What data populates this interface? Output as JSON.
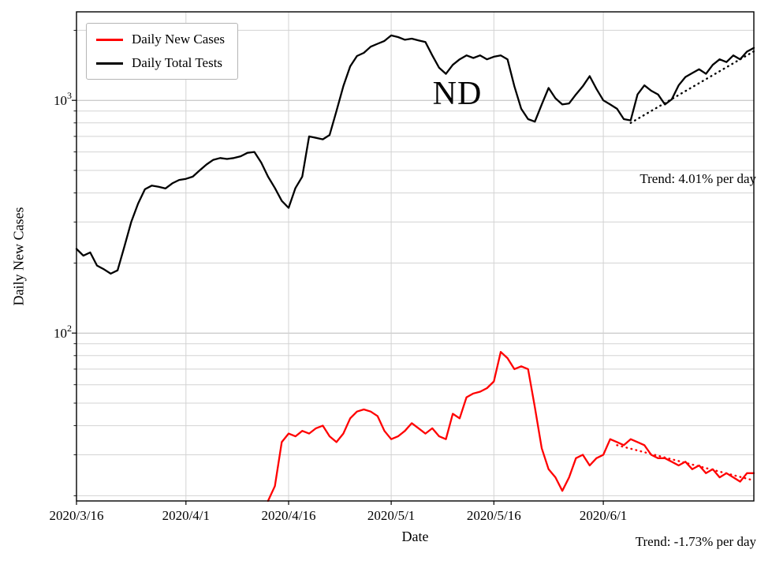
{
  "figure": {
    "annotation_text": "ND"
  },
  "chart_data": {
    "type": "line",
    "title": "",
    "xlabel": "Date",
    "ylabel": "Daily New Cases",
    "yscale": "log",
    "ylim": [
      19,
      2400
    ],
    "grid": "both",
    "annotation_text": "ND",
    "x_dates": [
      "2020/3/16",
      "2020/3/17",
      "2020/3/18",
      "2020/3/19",
      "2020/3/20",
      "2020/3/21",
      "2020/3/22",
      "2020/3/23",
      "2020/3/24",
      "2020/3/25",
      "2020/3/26",
      "2020/3/27",
      "2020/3/28",
      "2020/3/29",
      "2020/3/30",
      "2020/3/31",
      "2020/4/1",
      "2020/4/2",
      "2020/4/3",
      "2020/4/4",
      "2020/4/5",
      "2020/4/6",
      "2020/4/7",
      "2020/4/8",
      "2020/4/9",
      "2020/4/10",
      "2020/4/11",
      "2020/4/12",
      "2020/4/13",
      "2020/4/14",
      "2020/4/15",
      "2020/4/16",
      "2020/4/17",
      "2020/4/18",
      "2020/4/19",
      "2020/4/20",
      "2020/4/21",
      "2020/4/22",
      "2020/4/23",
      "2020/4/24",
      "2020/4/25",
      "2020/4/26",
      "2020/4/27",
      "2020/4/28",
      "2020/4/29",
      "2020/4/30",
      "2020/5/1",
      "2020/5/2",
      "2020/5/3",
      "2020/5/4",
      "2020/5/5",
      "2020/5/6",
      "2020/5/7",
      "2020/5/8",
      "2020/5/9",
      "2020/5/10",
      "2020/5/11",
      "2020/5/12",
      "2020/5/13",
      "2020/5/14",
      "2020/5/15",
      "2020/5/16",
      "2020/5/17",
      "2020/5/18",
      "2020/5/19",
      "2020/5/20",
      "2020/5/21",
      "2020/5/22",
      "2020/5/23",
      "2020/5/24",
      "2020/5/25",
      "2020/5/26",
      "2020/5/27",
      "2020/5/28",
      "2020/5/29",
      "2020/5/30",
      "2020/5/31",
      "2020/6/1",
      "2020/6/2",
      "2020/6/3",
      "2020/6/4",
      "2020/6/5",
      "2020/6/6",
      "2020/6/7",
      "2020/6/8",
      "2020/6/9",
      "2020/6/10",
      "2020/6/11",
      "2020/6/12",
      "2020/6/13",
      "2020/6/14",
      "2020/6/15",
      "2020/6/16",
      "2020/6/17",
      "2020/6/18",
      "2020/6/19",
      "2020/6/20",
      "2020/6/21",
      "2020/6/22",
      "2020/6/23"
    ],
    "x_ticks": [
      {
        "label": "2020/3/16",
        "index": 0
      },
      {
        "label": "2020/4/1",
        "index": 16
      },
      {
        "label": "2020/4/16",
        "index": 31
      },
      {
        "label": "2020/5/1",
        "index": 46
      },
      {
        "label": "2020/5/16",
        "index": 61
      },
      {
        "label": "2020/6/1",
        "index": 77
      }
    ],
    "y_ticks": [
      {
        "value": 100,
        "base": "10",
        "exp": "2",
        "label": "10^2"
      },
      {
        "value": 1000,
        "base": "10",
        "exp": "3",
        "label": "10^3"
      }
    ],
    "legend": {
      "position": "upper left",
      "entries": [
        {
          "label": "Daily New Cases",
          "color": "#ff0000"
        },
        {
          "label": "Daily Total Tests",
          "color": "#000000"
        }
      ]
    },
    "series": [
      {
        "name": "Daily New Cases",
        "color": "#ff0000",
        "values": [
          null,
          null,
          null,
          null,
          null,
          null,
          null,
          null,
          null,
          null,
          null,
          null,
          null,
          null,
          null,
          null,
          null,
          null,
          null,
          null,
          null,
          null,
          null,
          null,
          null,
          null,
          null,
          null,
          19,
          22,
          34,
          37,
          36,
          38,
          37,
          39,
          40,
          36,
          34,
          37,
          43,
          46,
          47,
          46,
          44,
          38,
          35,
          36,
          38,
          41,
          39,
          37,
          39,
          36,
          35,
          45,
          43,
          53,
          55,
          56,
          58,
          62,
          83,
          78,
          70,
          72,
          70,
          48,
          32,
          26,
          24,
          21,
          24,
          29,
          30,
          27,
          29,
          30,
          35,
          34,
          33,
          35,
          34,
          33,
          30,
          29,
          29,
          28,
          27,
          28,
          26,
          27,
          25,
          26,
          24,
          25,
          24,
          23,
          25,
          25
        ]
      },
      {
        "name": "Daily Total Tests",
        "color": "#000000",
        "values": [
          230,
          215,
          222,
          195,
          188,
          180,
          186,
          235,
          300,
          360,
          415,
          430,
          425,
          418,
          440,
          455,
          460,
          470,
          500,
          530,
          555,
          565,
          560,
          565,
          575,
          595,
          600,
          540,
          470,
          420,
          370,
          345,
          420,
          470,
          700,
          690,
          680,
          710,
          900,
          1150,
          1400,
          1550,
          1600,
          1700,
          1750,
          1800,
          1900,
          1870,
          1820,
          1840,
          1810,
          1780,
          1560,
          1380,
          1300,
          1420,
          1500,
          1560,
          1520,
          1560,
          1500,
          1540,
          1560,
          1500,
          1150,
          920,
          830,
          810,
          960,
          1130,
          1020,
          960,
          970,
          1060,
          1150,
          1270,
          1120,
          1000,
          960,
          920,
          830,
          820,
          1060,
          1160,
          1100,
          1060,
          960,
          1010,
          1160,
          1260,
          1310,
          1360,
          1300,
          1420,
          1500,
          1460,
          1560,
          1500,
          1620,
          1680
        ]
      }
    ],
    "trends": [
      {
        "name": "tests-trend",
        "color": "#000000",
        "start_date": "2020/6/5",
        "end_date": "2020/6/23",
        "start_value": 800,
        "pct_per_day": 4.01,
        "label": "Trend: 4.01% per day"
      },
      {
        "name": "cases-trend",
        "color": "#ff0000",
        "start_date": "2020/6/3",
        "end_date": "2020/6/23",
        "start_value": 33,
        "pct_per_day": -1.73,
        "label": "Trend: -1.73% per day"
      }
    ]
  }
}
